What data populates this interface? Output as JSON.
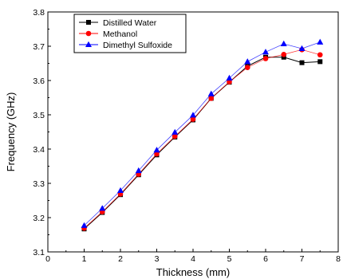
{
  "chart_data": {
    "type": "line",
    "title": "",
    "xlabel": "Thickness (mm)",
    "ylabel": "Frequency (GHz)",
    "xlim": [
      0,
      8
    ],
    "ylim": [
      3.1,
      3.8
    ],
    "x_ticks": [
      "0",
      "1",
      "2",
      "3",
      "4",
      "5",
      "6",
      "7",
      "8"
    ],
    "y_ticks": [
      "3.1",
      "3.2",
      "3.3",
      "3.4",
      "3.5",
      "3.6",
      "3.7",
      "3.8"
    ],
    "grid": false,
    "legend_position": "top-left",
    "x": [
      1,
      1.5,
      2,
      2.5,
      3,
      3.5,
      4,
      4.5,
      5,
      5.5,
      6,
      6.5,
      7,
      7.5
    ],
    "series": [
      {
        "name": "Distilled Water",
        "marker": "square",
        "color": "#000000",
        "values": [
          3.167,
          3.215,
          3.267,
          3.325,
          3.383,
          3.435,
          3.485,
          3.548,
          3.595,
          3.642,
          3.668,
          3.668,
          3.652,
          3.655
        ]
      },
      {
        "name": "Methanol",
        "marker": "circle",
        "color": "#ff0000",
        "values": [
          3.169,
          3.217,
          3.269,
          3.327,
          3.386,
          3.437,
          3.487,
          3.548,
          3.596,
          3.638,
          3.664,
          3.676,
          3.69,
          3.675
        ]
      },
      {
        "name": "Dimethyl Sulfoxide",
        "marker": "triangle",
        "color": "#0000ff",
        "values": [
          3.177,
          3.227,
          3.279,
          3.337,
          3.397,
          3.449,
          3.499,
          3.561,
          3.607,
          3.655,
          3.683,
          3.707,
          3.693,
          3.712
        ]
      }
    ]
  }
}
